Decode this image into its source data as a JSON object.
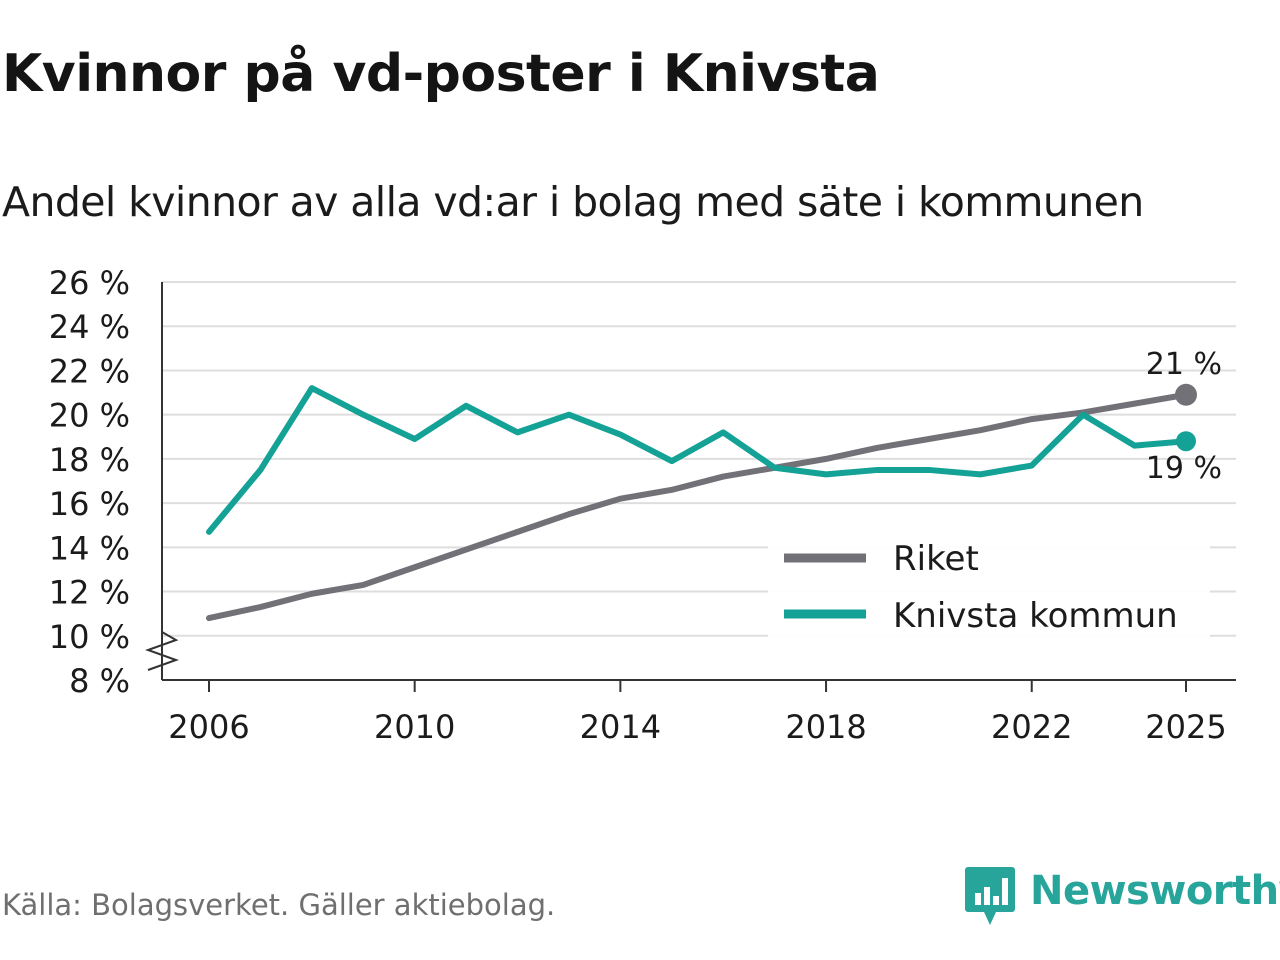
{
  "title": "Kvinnor på vd-poster i Knivsta",
  "subtitle": "Andel kvinnor av alla vd:ar i bolag med säte i kommunen",
  "source": "Källa: Bolagsverket. Gäller aktiebolag.",
  "brand": {
    "name": "Newsworthy",
    "icon": "newsworthy-logo-icon",
    "color": "#27a59a"
  },
  "chart_data": {
    "type": "line",
    "title": "Kvinnor på vd-poster i Knivsta",
    "subtitle": "Andel kvinnor av alla vd:ar i bolag med säte i kommunen",
    "xlabel": "",
    "ylabel": "",
    "x": [
      2006,
      2007,
      2008,
      2009,
      2010,
      2011,
      2012,
      2013,
      2014,
      2015,
      2016,
      2017,
      2018,
      2019,
      2020,
      2021,
      2022,
      2023,
      2024,
      2025
    ],
    "x_ticks": [
      2006,
      2010,
      2014,
      2018,
      2022,
      2025
    ],
    "x_tick_labels": [
      "2006",
      "2010",
      "2014",
      "2018",
      "2022",
      "2025"
    ],
    "ylim": [
      8,
      26
    ],
    "y_ticks": [
      8,
      10,
      12,
      14,
      16,
      18,
      20,
      22,
      24,
      26
    ],
    "y_tick_labels": [
      "8 %",
      "10 %",
      "12 %",
      "14 %",
      "16 %",
      "18 %",
      "20 %",
      "22 %",
      "24 %",
      "26 %"
    ],
    "axis_break": true,
    "grid": true,
    "legend_position": "bottom-right",
    "series": [
      {
        "name": "Riket",
        "color": "#737178",
        "values": [
          10.8,
          11.3,
          11.9,
          12.3,
          13.1,
          13.9,
          14.7,
          15.5,
          16.2,
          16.6,
          17.2,
          17.6,
          18.0,
          18.5,
          18.9,
          19.3,
          19.8,
          20.1,
          20.5,
          20.9
        ],
        "end_label": "21 %"
      },
      {
        "name": "Knivsta kommun",
        "color": "#14a196",
        "values": [
          14.7,
          17.5,
          21.2,
          20.0,
          18.9,
          20.4,
          19.2,
          20.0,
          19.1,
          17.9,
          19.2,
          17.6,
          17.3,
          17.5,
          17.5,
          17.3,
          17.7,
          20.0,
          18.6,
          18.8
        ],
        "end_label": "19 %"
      }
    ]
  }
}
